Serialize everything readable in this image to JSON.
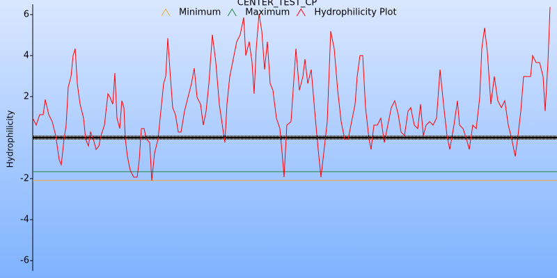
{
  "chart_data": {
    "type": "line",
    "title": "CENTER_TEST_CP",
    "ylabel": "Hydrophilicity",
    "ylim": [
      -6.5,
      6.5
    ],
    "yticks": [
      -6,
      -4,
      -2,
      2,
      4,
      6
    ],
    "xlim": [
      0,
      753
    ],
    "series": [
      {
        "name": "Minimum",
        "color": "#f0a830",
        "x": [
          0,
          753
        ],
        "values": [
          -2.1,
          -2.1
        ]
      },
      {
        "name": "Maximum",
        "color": "#1a8a3a",
        "x": [
          0,
          753
        ],
        "values": [
          -1.66,
          -1.66
        ]
      },
      {
        "name": "Hydrophilicity Plot",
        "color": "#ff0000",
        "x": [
          0,
          5,
          10,
          15,
          18,
          23,
          28,
          33,
          38,
          41,
          45,
          48,
          51,
          55,
          58,
          61,
          64,
          68,
          73,
          76,
          80,
          83,
          87,
          91,
          95,
          98,
          103,
          108,
          111,
          115,
          118,
          121,
          125,
          128,
          131,
          133,
          136,
          140,
          145,
          150,
          153,
          156,
          160,
          163,
          168,
          171,
          175,
          180,
          183,
          188,
          191,
          194,
          197,
          201,
          205,
          209,
          213,
          218,
          223,
          228,
          232,
          236,
          241,
          245,
          249,
          253,
          258,
          263,
          268,
          273,
          276,
          279,
          283,
          288,
          293,
          298,
          303,
          306,
          311,
          315,
          318,
          321,
          325,
          329,
          333,
          337,
          341,
          345,
          350,
          355,
          359,
          361,
          365,
          371,
          375,
          378,
          383,
          388,
          391,
          395,
          400,
          405,
          410,
          414,
          418,
          423,
          428,
          433,
          438,
          443,
          448,
          453,
          458,
          463,
          466,
          470,
          474,
          478,
          483,
          486,
          490,
          495,
          500,
          505,
          510,
          515,
          520,
          525,
          529,
          534,
          539,
          543,
          548,
          553,
          557,
          561,
          565,
          570,
          575,
          580,
          585,
          590,
          595,
          599,
          605,
          610,
          613,
          618,
          623,
          627,
          632,
          637,
          642,
          645,
          649,
          653,
          658,
          663,
          668,
          673,
          678,
          683,
          688,
          693,
          697,
          701,
          705,
          710,
          715,
          718,
          723,
          728,
          733,
          736,
          740,
          743
        ],
        "values": [
          0.95,
          0.61,
          1.12,
          1.12,
          1.86,
          1.12,
          0.78,
          0.1,
          -1.08,
          -1.32,
          -0.07,
          0.61,
          2.47,
          2.98,
          4.0,
          4.34,
          2.64,
          1.63,
          0.95,
          -0.07,
          -0.41,
          0.27,
          -0.07,
          -0.58,
          -0.41,
          0.1,
          0.61,
          2.14,
          1.97,
          1.63,
          3.15,
          0.95,
          0.44,
          1.8,
          1.46,
          -0.07,
          -0.92,
          -1.59,
          -1.93,
          -1.93,
          -1.08,
          0.44,
          0.44,
          -0.07,
          -0.24,
          -2.1,
          -0.75,
          -0.07,
          0.95,
          2.64,
          2.98,
          4.85,
          3.32,
          1.46,
          1.12,
          0.27,
          0.27,
          1.29,
          1.97,
          2.64,
          3.39,
          1.97,
          1.63,
          0.61,
          1.29,
          2.64,
          5.02,
          3.66,
          1.63,
          0.44,
          -0.24,
          1.63,
          2.98,
          3.83,
          4.68,
          5.02,
          5.86,
          4.0,
          4.68,
          3.66,
          2.14,
          4.34,
          6.03,
          5.19,
          3.32,
          4.68,
          2.64,
          2.31,
          0.95,
          0.44,
          -1.08,
          -1.93,
          0.61,
          0.78,
          2.81,
          4.34,
          2.31,
          2.98,
          3.83,
          2.64,
          3.32,
          1.29,
          -0.58,
          -1.93,
          -0.75,
          0.78,
          5.19,
          4.34,
          2.31,
          0.78,
          -0.07,
          -0.07,
          0.78,
          1.63,
          2.98,
          4.0,
          4.0,
          1.46,
          -0.07,
          -0.58,
          0.61,
          0.61,
          0.95,
          -0.24,
          0.61,
          1.46,
          1.8,
          1.12,
          0.27,
          0.1,
          1.29,
          1.46,
          0.61,
          0.44,
          1.63,
          0.1,
          0.61,
          0.78,
          0.61,
          0.95,
          3.32,
          1.63,
          0.1,
          -0.58,
          0.61,
          1.8,
          0.61,
          0.44,
          -0.07,
          -0.58,
          0.61,
          0.44,
          1.97,
          4.34,
          5.36,
          4.17,
          1.63,
          2.98,
          1.8,
          1.46,
          1.8,
          0.61,
          -0.07,
          -0.92,
          0.1,
          1.29,
          2.98,
          2.98,
          2.98,
          4.0,
          3.66,
          3.66,
          2.98,
          1.29,
          3.66,
          6.37
        ]
      }
    ]
  }
}
